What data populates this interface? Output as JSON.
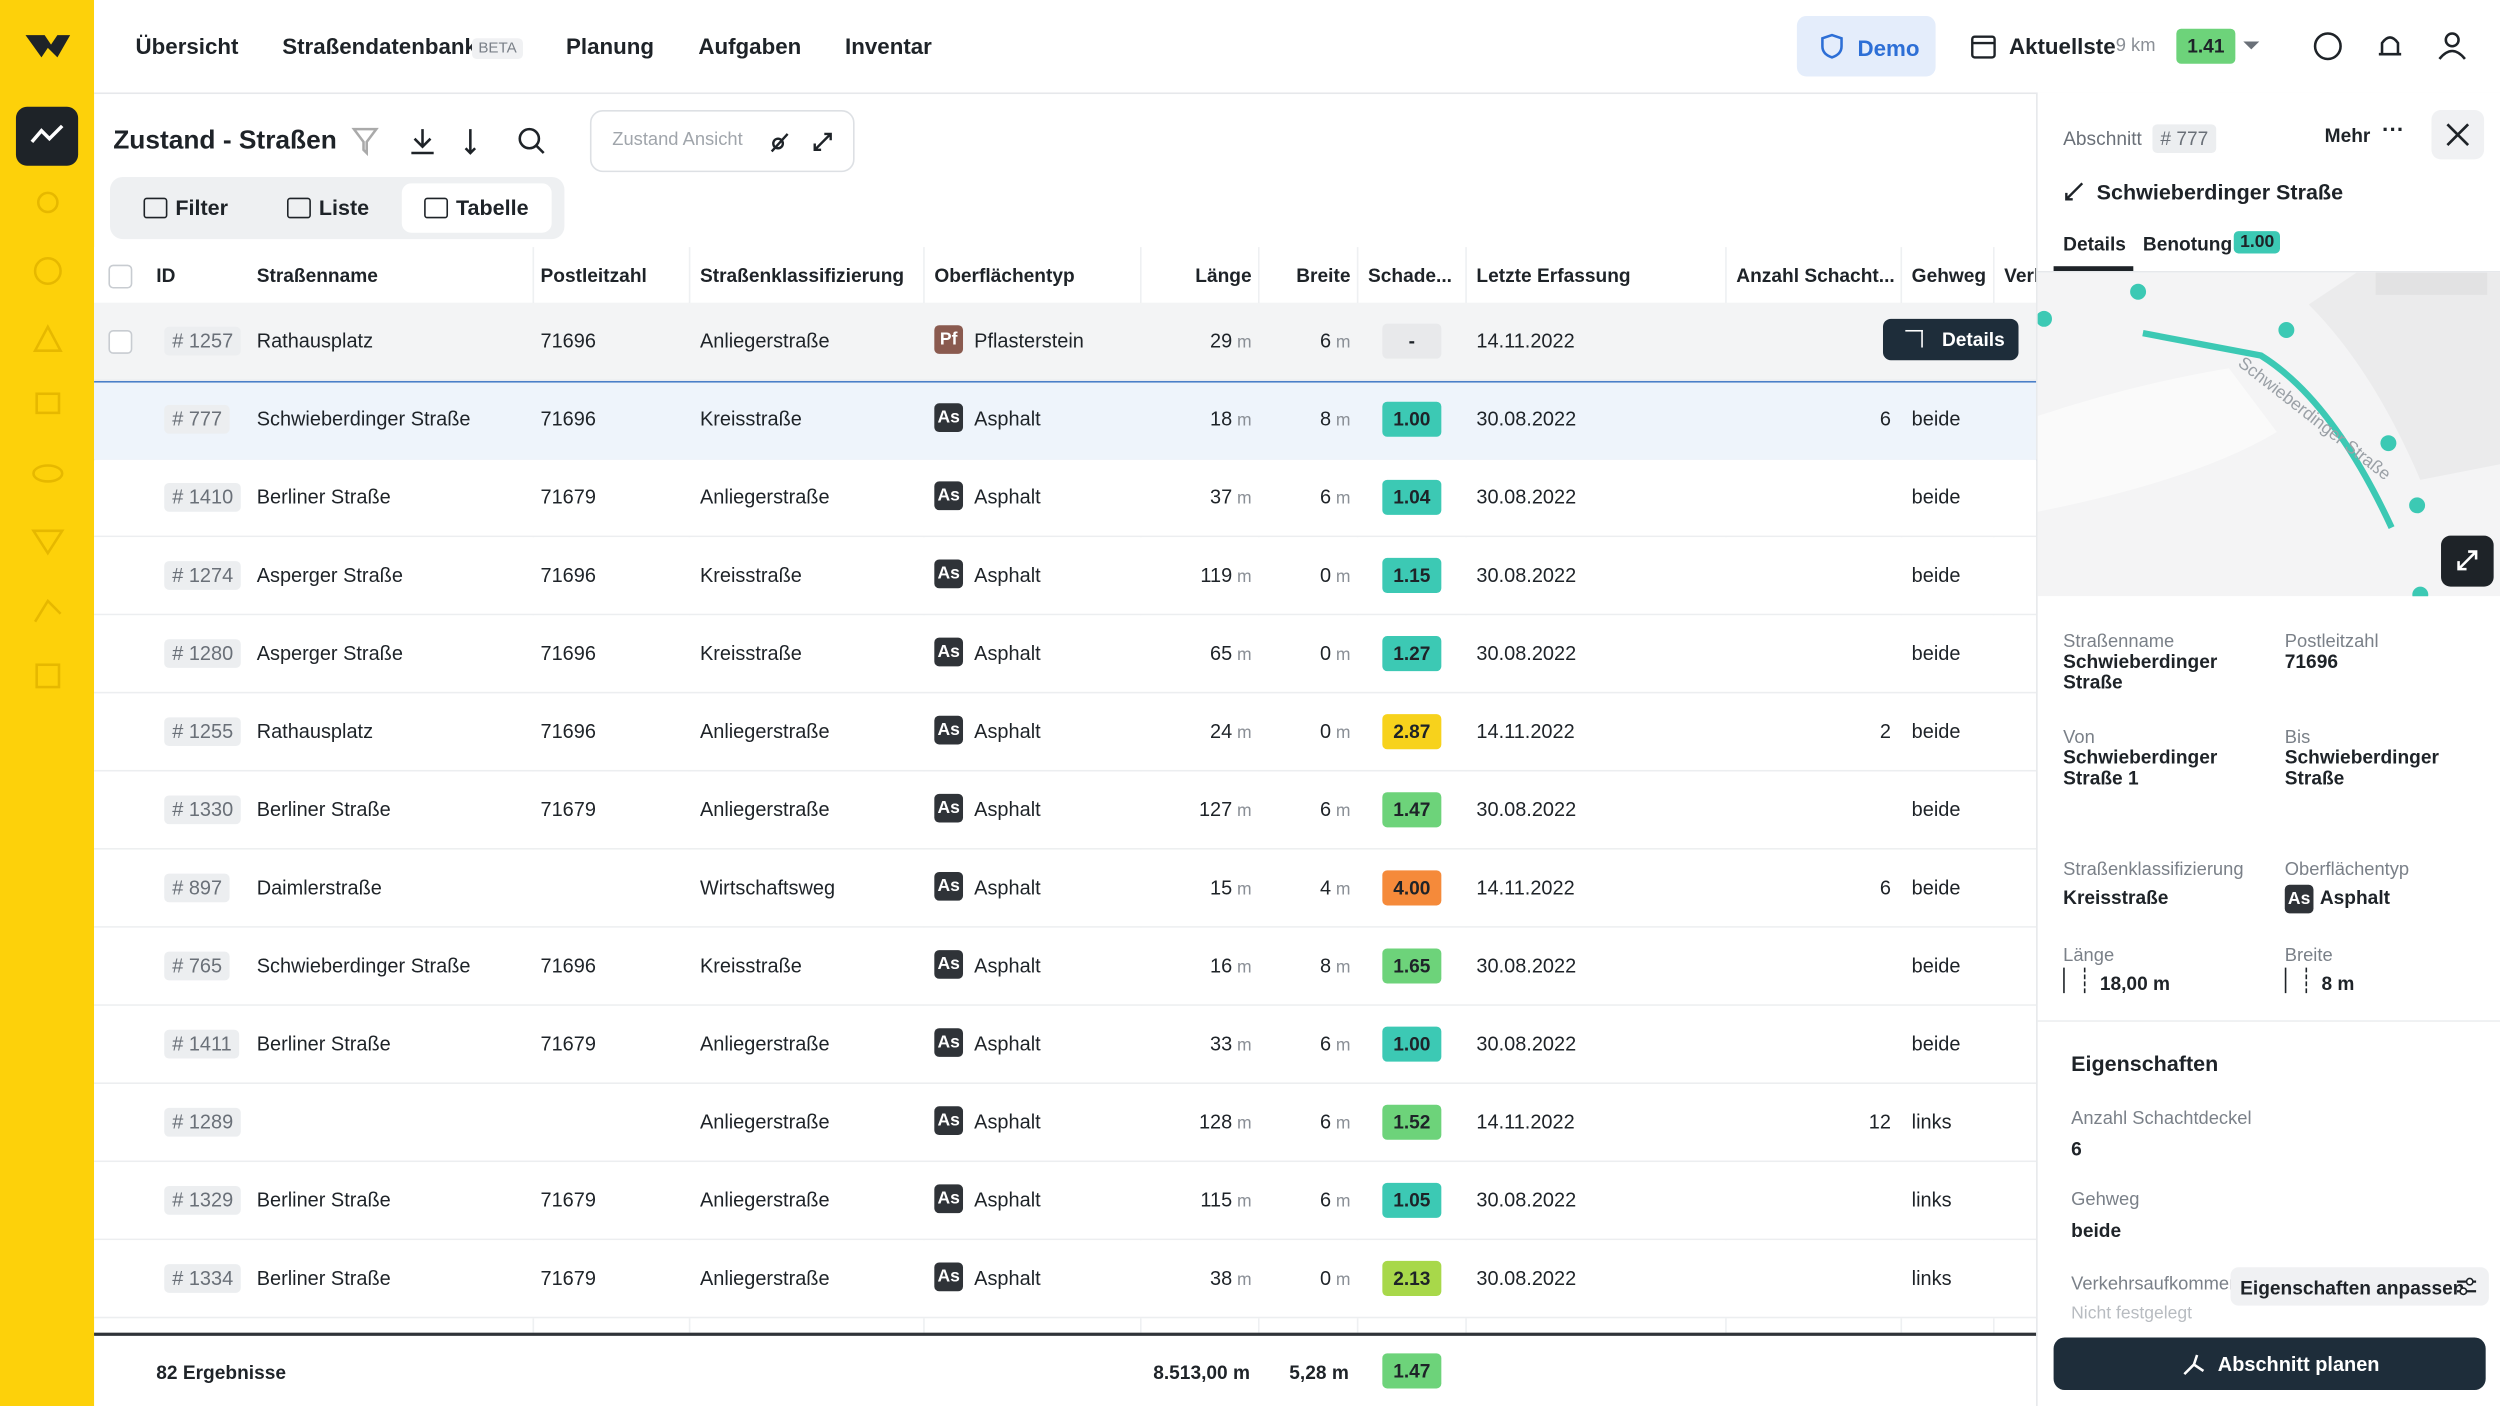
{
  "nav": {
    "items": [
      "Übersicht",
      "Straßendatenbank",
      "Planung",
      "Aufgaben",
      "Inventar"
    ],
    "beta": "BETA",
    "demo": "Demo",
    "period": "Aktuellste",
    "distance": "9 km",
    "score": "1.41"
  },
  "toolbar": {
    "title": "Zustand - Straßen",
    "view_placeholder": "Zustand Ansicht",
    "tabs": [
      "Filter",
      "Liste",
      "Tabelle"
    ]
  },
  "table": {
    "columns": [
      "ID",
      "Straßenname",
      "Postleitzahl",
      "Straßenklassifizierung",
      "Oberflächentyp",
      "Länge",
      "Breite",
      "Schade...",
      "Letzte Erfassung",
      "Anzahl Schacht...",
      "Gehweg",
      "Verl"
    ],
    "unit": "m",
    "details_button": "Details",
    "rows": [
      {
        "id": "# 1257",
        "name": "Rathausplatz",
        "plz": "71696",
        "class": "Anliegerstraße",
        "abbr": "Pf",
        "surface": "Pflasterstein",
        "length": 29,
        "width": 6,
        "score": "-",
        "date": "14.11.2022",
        "count": null,
        "gehweg": null
      },
      {
        "id": "# 777",
        "name": "Schwieberdinger Straße",
        "plz": "71696",
        "class": "Kreisstraße",
        "abbr": "As",
        "surface": "Asphalt",
        "length": 18,
        "width": 8,
        "score": "1.00",
        "date": "30.08.2022",
        "count": 6,
        "gehweg": "beide"
      },
      {
        "id": "# 1410",
        "name": "Berliner Straße",
        "plz": "71679",
        "class": "Anliegerstraße",
        "abbr": "As",
        "surface": "Asphalt",
        "length": 37,
        "width": 6,
        "score": "1.04",
        "date": "30.08.2022",
        "count": null,
        "gehweg": "beide"
      },
      {
        "id": "# 1274",
        "name": "Asperger Straße",
        "plz": "71696",
        "class": "Kreisstraße",
        "abbr": "As",
        "surface": "Asphalt",
        "length": 119,
        "width": 0,
        "score": "1.15",
        "date": "30.08.2022",
        "count": null,
        "gehweg": "beide"
      },
      {
        "id": "# 1280",
        "name": "Asperger Straße",
        "plz": "71696",
        "class": "Kreisstraße",
        "abbr": "As",
        "surface": "Asphalt",
        "length": 65,
        "width": 0,
        "score": "1.27",
        "date": "30.08.2022",
        "count": null,
        "gehweg": "beide"
      },
      {
        "id": "# 1255",
        "name": "Rathausplatz",
        "plz": "71696",
        "class": "Anliegerstraße",
        "abbr": "As",
        "surface": "Asphalt",
        "length": 24,
        "width": 0,
        "score": "2.87",
        "date": "14.11.2022",
        "count": 2,
        "gehweg": "beide"
      },
      {
        "id": "# 1330",
        "name": "Berliner Straße",
        "plz": "71679",
        "class": "Anliegerstraße",
        "abbr": "As",
        "surface": "Asphalt",
        "length": 127,
        "width": 6,
        "score": "1.47",
        "date": "30.08.2022",
        "count": null,
        "gehweg": "beide"
      },
      {
        "id": "# 897",
        "name": "Daimlerstraße",
        "plz": null,
        "class": "Wirtschaftsweg",
        "abbr": "As",
        "surface": "Asphalt",
        "length": 15,
        "width": 4,
        "score": "4.00",
        "date": "14.11.2022",
        "count": 6,
        "gehweg": "beide"
      },
      {
        "id": "# 765",
        "name": "Schwieberdinger Straße",
        "plz": "71696",
        "class": "Kreisstraße",
        "abbr": "As",
        "surface": "Asphalt",
        "length": 16,
        "width": 8,
        "score": "1.65",
        "date": "30.08.2022",
        "count": null,
        "gehweg": "beide"
      },
      {
        "id": "# 1411",
        "name": "Berliner Straße",
        "plz": "71679",
        "class": "Anliegerstraße",
        "abbr": "As",
        "surface": "Asphalt",
        "length": 33,
        "width": 6,
        "score": "1.00",
        "date": "30.08.2022",
        "count": null,
        "gehweg": "beide"
      },
      {
        "id": "# 1289",
        "name": null,
        "plz": null,
        "class": "Anliegerstraße",
        "abbr": "As",
        "surface": "Asphalt",
        "length": 128,
        "width": 6,
        "score": "1.52",
        "date": "14.11.2022",
        "count": 12,
        "gehweg": "links"
      },
      {
        "id": "# 1329",
        "name": "Berliner Straße",
        "plz": "71679",
        "class": "Anliegerstraße",
        "abbr": "As",
        "surface": "Asphalt",
        "length": 115,
        "width": 6,
        "score": "1.05",
        "date": "30.08.2022",
        "count": null,
        "gehweg": "links"
      },
      {
        "id": "# 1334",
        "name": "Berliner Straße",
        "plz": "71679",
        "class": "Anliegerstraße",
        "abbr": "As",
        "surface": "Asphalt",
        "length": 38,
        "width": 0,
        "score": "2.13",
        "date": "30.08.2022",
        "count": null,
        "gehweg": "links"
      }
    ],
    "footer": {
      "results": "82 Ergebnisse",
      "length": "8.513,00 m",
      "width": "5,28 m",
      "score": "1.47"
    }
  },
  "panel": {
    "label": "Abschnitt",
    "id": "# 777",
    "more": "Mehr",
    "title": "Schwieberdinger Straße",
    "tabs": [
      "Details",
      "Benotung"
    ],
    "grade": "1.00",
    "map_label": "Schwieberdinger Straße",
    "fields": [
      {
        "label": "Straßenname",
        "value": "Schwieberdinger Straße"
      },
      {
        "label": "Postleitzahl",
        "value": "71696"
      },
      {
        "label": "Von",
        "value": "Schwieberdinger Straße 1"
      },
      {
        "label": "Bis",
        "value": "Schwieberdinger Straße"
      },
      {
        "label": "Straßenklassifizierung",
        "value": "Kreisstraße"
      },
      {
        "label": "Oberflächentyp",
        "badge": "As",
        "value": "Asphalt"
      },
      {
        "label": "Länge",
        "value": "18,00 m"
      },
      {
        "label": "Breite",
        "value": "8 m"
      }
    ],
    "properties_title": "Eigenschaften",
    "properties": [
      {
        "label": "Anzahl Schachtdeckel",
        "value": "6"
      },
      {
        "label": "Gehweg",
        "value": "beide"
      },
      {
        "label": "Verkehrsaufkommen",
        "value": "Nicht festgelegt"
      }
    ],
    "edit_button": "Eigenschaften anpassen",
    "plan_button": "Abschnitt planen"
  }
}
